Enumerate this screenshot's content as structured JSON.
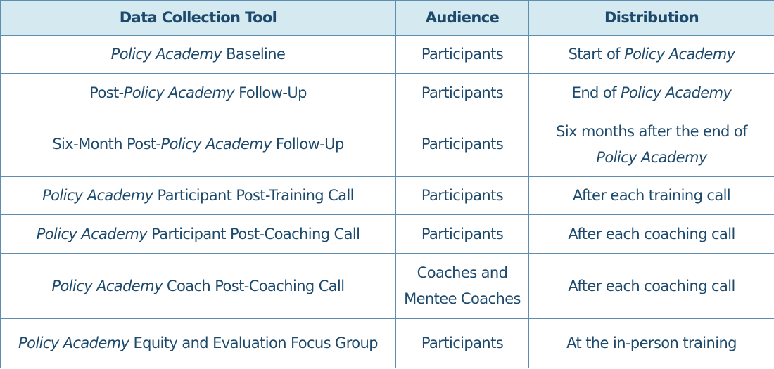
{
  "headers": [
    "Data Collection Tool",
    "Audience",
    "Distribution"
  ],
  "rows": [
    {
      "tool": [
        {
          "t": "Policy Academy",
          "i": true
        },
        {
          "t": " Baseline",
          "i": false
        }
      ],
      "audience": "Participants",
      "distribution": [
        {
          "t": "Start of ",
          "i": false
        },
        {
          "t": "Policy Academy",
          "i": true
        }
      ]
    },
    {
      "tool": [
        {
          "t": "Post-",
          "i": false
        },
        {
          "t": "Policy Academy",
          "i": true
        },
        {
          "t": " Follow-Up",
          "i": false
        }
      ],
      "audience": "Participants",
      "distribution": [
        {
          "t": "End of ",
          "i": false
        },
        {
          "t": "Policy Academy",
          "i": true
        }
      ]
    },
    {
      "tool": [
        {
          "t": "Six-Month Post-",
          "i": false
        },
        {
          "t": "Policy Academy",
          "i": true
        },
        {
          "t": " Follow-Up",
          "i": false
        }
      ],
      "audience": "Participants",
      "distribution": [
        {
          "t": "Six months after the end of ",
          "i": false
        },
        {
          "t": "Policy Academy",
          "i": true
        }
      ]
    },
    {
      "tool": [
        {
          "t": "Policy Academy",
          "i": true
        },
        {
          "t": " Participant Post-Training Call",
          "i": false
        }
      ],
      "audience": "Participants",
      "distribution": [
        {
          "t": "After each training call",
          "i": false
        }
      ]
    },
    {
      "tool": [
        {
          "t": "Policy Academy",
          "i": true
        },
        {
          "t": " Participant Post-Coaching Call",
          "i": false
        }
      ],
      "audience": "Participants",
      "distribution": [
        {
          "t": "After each coaching call",
          "i": false
        }
      ]
    },
    {
      "tool": [
        {
          "t": "Policy Academy",
          "i": true
        },
        {
          "t": " Coach Post-Coaching Call",
          "i": false
        }
      ],
      "audience": "Coaches and Mentee Coaches",
      "distribution": [
        {
          "t": "After each coaching call",
          "i": false
        }
      ]
    },
    {
      "tool": [
        {
          "t": "Policy Academy",
          "i": true
        },
        {
          "t": " Equity and Evaluation Focus Group",
          "i": false
        }
      ],
      "audience": "Participants",
      "distribution": [
        {
          "t": "At the in-person training",
          "i": false
        }
      ]
    }
  ],
  "colors": {
    "header_bg": "#d5e9f1",
    "text": "#1d4a6c",
    "border": "#5f8db0"
  }
}
